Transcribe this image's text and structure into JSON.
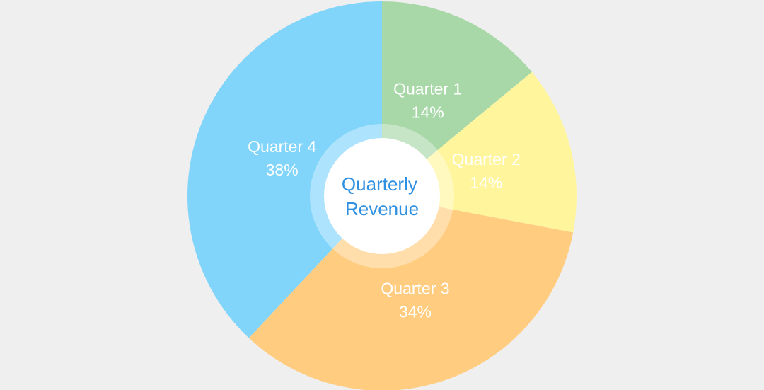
{
  "chart_data": {
    "type": "pie",
    "center_label": [
      "Quarterly",
      "Revenue"
    ],
    "slices": [
      {
        "label": "Quarter 1",
        "value": 14,
        "display": "14%",
        "color": "#a8d8a8"
      },
      {
        "label": "Quarter 2",
        "value": 14,
        "display": "14%",
        "color": "#fff59d"
      },
      {
        "label": "Quarter 3",
        "value": 34,
        "display": "34%",
        "color": "#ffcc80"
      },
      {
        "label": "Quarter 4",
        "value": 38,
        "display": "38%",
        "color": "#81d4fa"
      }
    ],
    "colors": {
      "background": "#efefef",
      "center_fill": "#ffffff",
      "center_text": "#2f8fe0"
    }
  }
}
